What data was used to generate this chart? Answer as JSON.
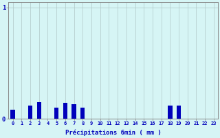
{
  "xlabel": "Précipitations 6min ( mm )",
  "categories": [
    0,
    1,
    2,
    3,
    4,
    5,
    6,
    7,
    8,
    9,
    10,
    11,
    12,
    13,
    14,
    15,
    16,
    17,
    18,
    19,
    20,
    21,
    22,
    23
  ],
  "values": [
    0.08,
    0.0,
    0.12,
    0.15,
    0.0,
    0.1,
    0.14,
    0.13,
    0.1,
    0.0,
    0.0,
    0.0,
    0.0,
    0.0,
    0.0,
    0.0,
    0.0,
    0.0,
    0.12,
    0.12,
    0.0,
    0.0,
    0.0,
    0.0
  ],
  "ylim": [
    0,
    1.05
  ],
  "yticks": [
    0,
    1
  ],
  "bar_color": "#0000bb",
  "bg_color": "#d6f5f5",
  "grid_color": "#b0c8c8",
  "axis_color": "#888888",
  "label_color": "#0000bb",
  "figsize": [
    3.2,
    2.0
  ],
  "dpi": 100,
  "bar_width": 0.5
}
